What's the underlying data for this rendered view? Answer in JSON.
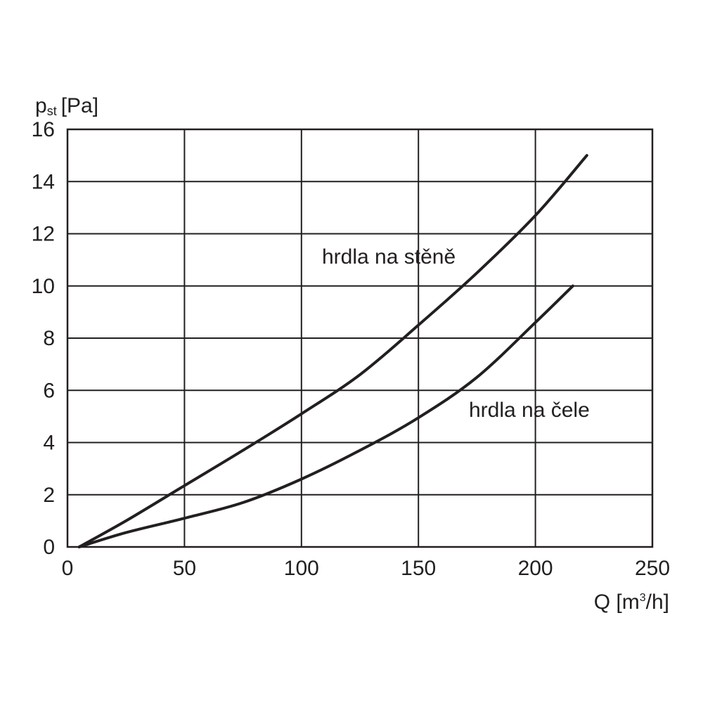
{
  "chart_data": {
    "type": "line",
    "xlim": [
      0,
      250
    ],
    "ylim": [
      0,
      16
    ],
    "x_ticks": [
      0,
      50,
      100,
      150,
      200,
      250
    ],
    "y_ticks": [
      0,
      2,
      4,
      6,
      8,
      10,
      12,
      14,
      16
    ],
    "grid": true,
    "ylabel": {
      "main": "p",
      "sub": "st",
      "unit": "[Pa]"
    },
    "xlabel": {
      "main": "Q [m",
      "sup": "3",
      "unit": "/h]"
    },
    "series": [
      {
        "name": "hrdla na stěně",
        "x": [
          5,
          25,
          50,
          75,
          100,
          125,
          150,
          175,
          200,
          222
        ],
        "y": [
          0,
          1.0,
          2.35,
          3.7,
          5.1,
          6.6,
          8.5,
          10.5,
          12.7,
          15.0
        ]
      },
      {
        "name": "hrdla na čele",
        "x": [
          5,
          25,
          50,
          75,
          100,
          125,
          150,
          175,
          200,
          216
        ],
        "y": [
          0,
          0.55,
          1.1,
          1.7,
          2.6,
          3.7,
          4.95,
          6.5,
          8.6,
          10.0
        ]
      }
    ],
    "colors": {
      "line": "#231f20",
      "grid": "#231f20",
      "text": "#231f20"
    }
  }
}
